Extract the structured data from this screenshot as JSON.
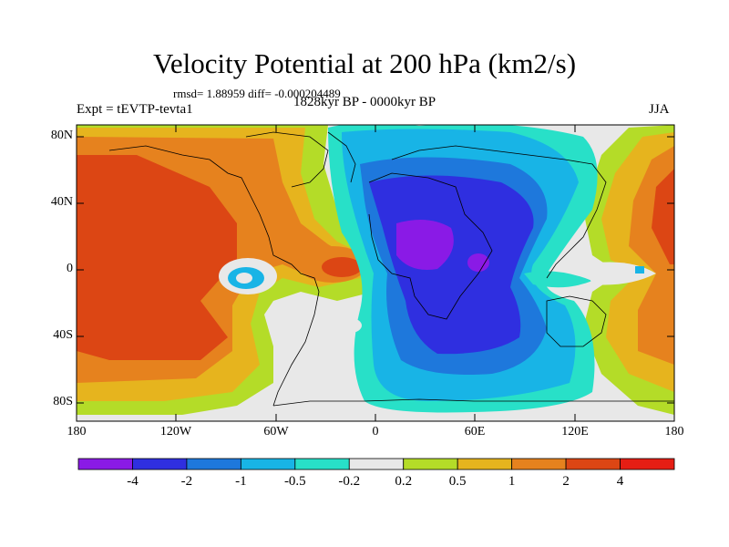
{
  "title": "Velocity Potential at 200 hPa (km2/s)",
  "stats": "rmsd= 1.88959 diff= -0.000204489",
  "experiment": "Expt = tEVTP-tevta1",
  "period": "1828kyr BP - 0000kyr BP",
  "season": "JJA",
  "lat_ticks": [
    "80N",
    "40N",
    "0",
    "40S",
    "80S"
  ],
  "lon_ticks": [
    "180",
    "120W",
    "60W",
    "0",
    "60E",
    "120E",
    "180"
  ],
  "colorbar": {
    "labels": [
      "-4",
      "-2",
      "-1",
      "-0.5",
      "-0.2",
      "0.2",
      "0.5",
      "1",
      "2",
      "4"
    ],
    "colors": [
      "#8a1ae6",
      "#2f2fe0",
      "#1e78dc",
      "#18b4e6",
      "#28e0c8",
      "#e8e8e8",
      "#b4dc28",
      "#e6b41e",
      "#e6821e",
      "#dc4614",
      "#e61e14"
    ]
  },
  "chart_data": {
    "type": "contour-map",
    "projection": "cylindrical-equidistant",
    "lon_range": [
      -180,
      180
    ],
    "lat_range": [
      -90,
      90
    ],
    "contour_levels": [
      -4,
      -2,
      -1,
      -0.5,
      -0.2,
      0.2,
      0.5,
      1,
      2,
      4
    ],
    "units": "km2/s",
    "features": [
      {
        "name": "Negative potential center",
        "lon": 30,
        "lat": 20,
        "value": "< -4"
      },
      {
        "name": "Positive potential center, Pacific",
        "lon": -150,
        "lat": 10,
        "value": "2 to 4"
      },
      {
        "name": "Positive potential center, western Pacific",
        "lon": 170,
        "lat": 15,
        "value": "2 to 4"
      }
    ]
  }
}
